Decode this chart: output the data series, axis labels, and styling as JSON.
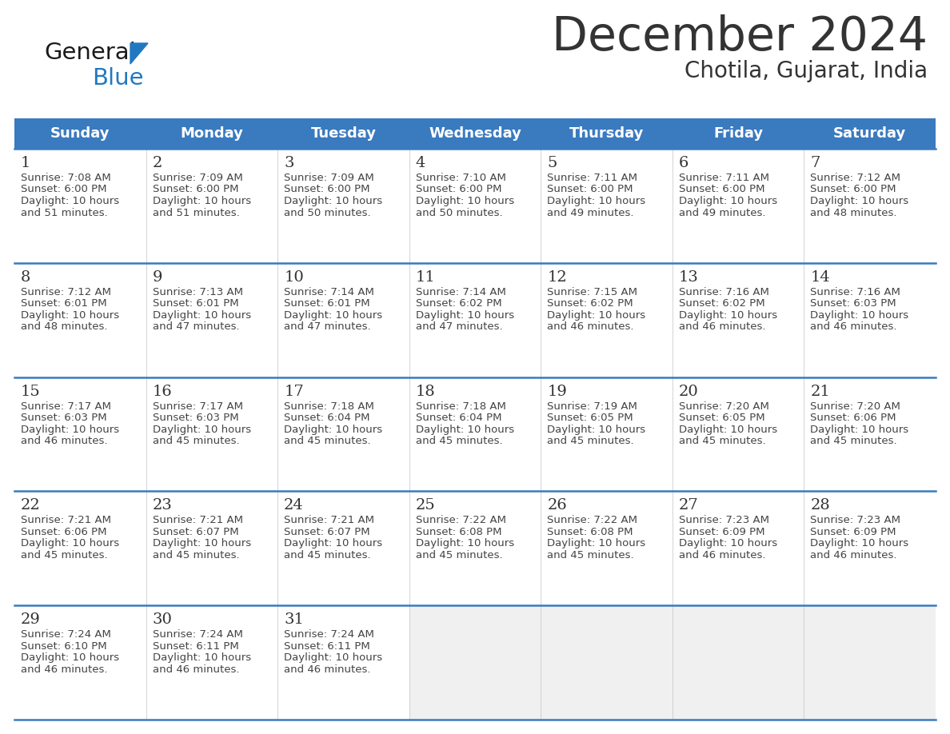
{
  "title": "December 2024",
  "subtitle": "Chotila, Gujarat, India",
  "header_color": "#3a7abf",
  "header_text_color": "#ffffff",
  "day_names": [
    "Sunday",
    "Monday",
    "Tuesday",
    "Wednesday",
    "Thursday",
    "Friday",
    "Saturday"
  ],
  "weeks": [
    [
      {
        "day": 1,
        "sunrise": "7:08 AM",
        "sunset": "6:00 PM",
        "daylight_hours": 10,
        "daylight_minutes": 51
      },
      {
        "day": 2,
        "sunrise": "7:09 AM",
        "sunset": "6:00 PM",
        "daylight_hours": 10,
        "daylight_minutes": 51
      },
      {
        "day": 3,
        "sunrise": "7:09 AM",
        "sunset": "6:00 PM",
        "daylight_hours": 10,
        "daylight_minutes": 50
      },
      {
        "day": 4,
        "sunrise": "7:10 AM",
        "sunset": "6:00 PM",
        "daylight_hours": 10,
        "daylight_minutes": 50
      },
      {
        "day": 5,
        "sunrise": "7:11 AM",
        "sunset": "6:00 PM",
        "daylight_hours": 10,
        "daylight_minutes": 49
      },
      {
        "day": 6,
        "sunrise": "7:11 AM",
        "sunset": "6:00 PM",
        "daylight_hours": 10,
        "daylight_minutes": 49
      },
      {
        "day": 7,
        "sunrise": "7:12 AM",
        "sunset": "6:00 PM",
        "daylight_hours": 10,
        "daylight_minutes": 48
      }
    ],
    [
      {
        "day": 8,
        "sunrise": "7:12 AM",
        "sunset": "6:01 PM",
        "daylight_hours": 10,
        "daylight_minutes": 48
      },
      {
        "day": 9,
        "sunrise": "7:13 AM",
        "sunset": "6:01 PM",
        "daylight_hours": 10,
        "daylight_minutes": 47
      },
      {
        "day": 10,
        "sunrise": "7:14 AM",
        "sunset": "6:01 PM",
        "daylight_hours": 10,
        "daylight_minutes": 47
      },
      {
        "day": 11,
        "sunrise": "7:14 AM",
        "sunset": "6:02 PM",
        "daylight_hours": 10,
        "daylight_minutes": 47
      },
      {
        "day": 12,
        "sunrise": "7:15 AM",
        "sunset": "6:02 PM",
        "daylight_hours": 10,
        "daylight_minutes": 46
      },
      {
        "day": 13,
        "sunrise": "7:16 AM",
        "sunset": "6:02 PM",
        "daylight_hours": 10,
        "daylight_minutes": 46
      },
      {
        "day": 14,
        "sunrise": "7:16 AM",
        "sunset": "6:03 PM",
        "daylight_hours": 10,
        "daylight_minutes": 46
      }
    ],
    [
      {
        "day": 15,
        "sunrise": "7:17 AM",
        "sunset": "6:03 PM",
        "daylight_hours": 10,
        "daylight_minutes": 46
      },
      {
        "day": 16,
        "sunrise": "7:17 AM",
        "sunset": "6:03 PM",
        "daylight_hours": 10,
        "daylight_minutes": 45
      },
      {
        "day": 17,
        "sunrise": "7:18 AM",
        "sunset": "6:04 PM",
        "daylight_hours": 10,
        "daylight_minutes": 45
      },
      {
        "day": 18,
        "sunrise": "7:18 AM",
        "sunset": "6:04 PM",
        "daylight_hours": 10,
        "daylight_minutes": 45
      },
      {
        "day": 19,
        "sunrise": "7:19 AM",
        "sunset": "6:05 PM",
        "daylight_hours": 10,
        "daylight_minutes": 45
      },
      {
        "day": 20,
        "sunrise": "7:20 AM",
        "sunset": "6:05 PM",
        "daylight_hours": 10,
        "daylight_minutes": 45
      },
      {
        "day": 21,
        "sunrise": "7:20 AM",
        "sunset": "6:06 PM",
        "daylight_hours": 10,
        "daylight_minutes": 45
      }
    ],
    [
      {
        "day": 22,
        "sunrise": "7:21 AM",
        "sunset": "6:06 PM",
        "daylight_hours": 10,
        "daylight_minutes": 45
      },
      {
        "day": 23,
        "sunrise": "7:21 AM",
        "sunset": "6:07 PM",
        "daylight_hours": 10,
        "daylight_minutes": 45
      },
      {
        "day": 24,
        "sunrise": "7:21 AM",
        "sunset": "6:07 PM",
        "daylight_hours": 10,
        "daylight_minutes": 45
      },
      {
        "day": 25,
        "sunrise": "7:22 AM",
        "sunset": "6:08 PM",
        "daylight_hours": 10,
        "daylight_minutes": 45
      },
      {
        "day": 26,
        "sunrise": "7:22 AM",
        "sunset": "6:08 PM",
        "daylight_hours": 10,
        "daylight_minutes": 45
      },
      {
        "day": 27,
        "sunrise": "7:23 AM",
        "sunset": "6:09 PM",
        "daylight_hours": 10,
        "daylight_minutes": 46
      },
      {
        "day": 28,
        "sunrise": "7:23 AM",
        "sunset": "6:09 PM",
        "daylight_hours": 10,
        "daylight_minutes": 46
      }
    ],
    [
      {
        "day": 29,
        "sunrise": "7:24 AM",
        "sunset": "6:10 PM",
        "daylight_hours": 10,
        "daylight_minutes": 46
      },
      {
        "day": 30,
        "sunrise": "7:24 AM",
        "sunset": "6:11 PM",
        "daylight_hours": 10,
        "daylight_minutes": 46
      },
      {
        "day": 31,
        "sunrise": "7:24 AM",
        "sunset": "6:11 PM",
        "daylight_hours": 10,
        "daylight_minutes": 46
      },
      null,
      null,
      null,
      null
    ]
  ],
  "bg_color": "#ffffff",
  "cell_bg_color": "#ffffff",
  "empty_cell_bg_color": "#f0f0f0",
  "divider_color": "#3a7abf",
  "text_color": "#444444",
  "day_num_color": "#333333",
  "logo_general_color": "#1a1a1a",
  "logo_blue_color": "#2278c0",
  "title_fontsize": 42,
  "subtitle_fontsize": 20,
  "header_fontsize": 13,
  "day_num_fontsize": 14,
  "cell_text_fontsize": 9.5
}
